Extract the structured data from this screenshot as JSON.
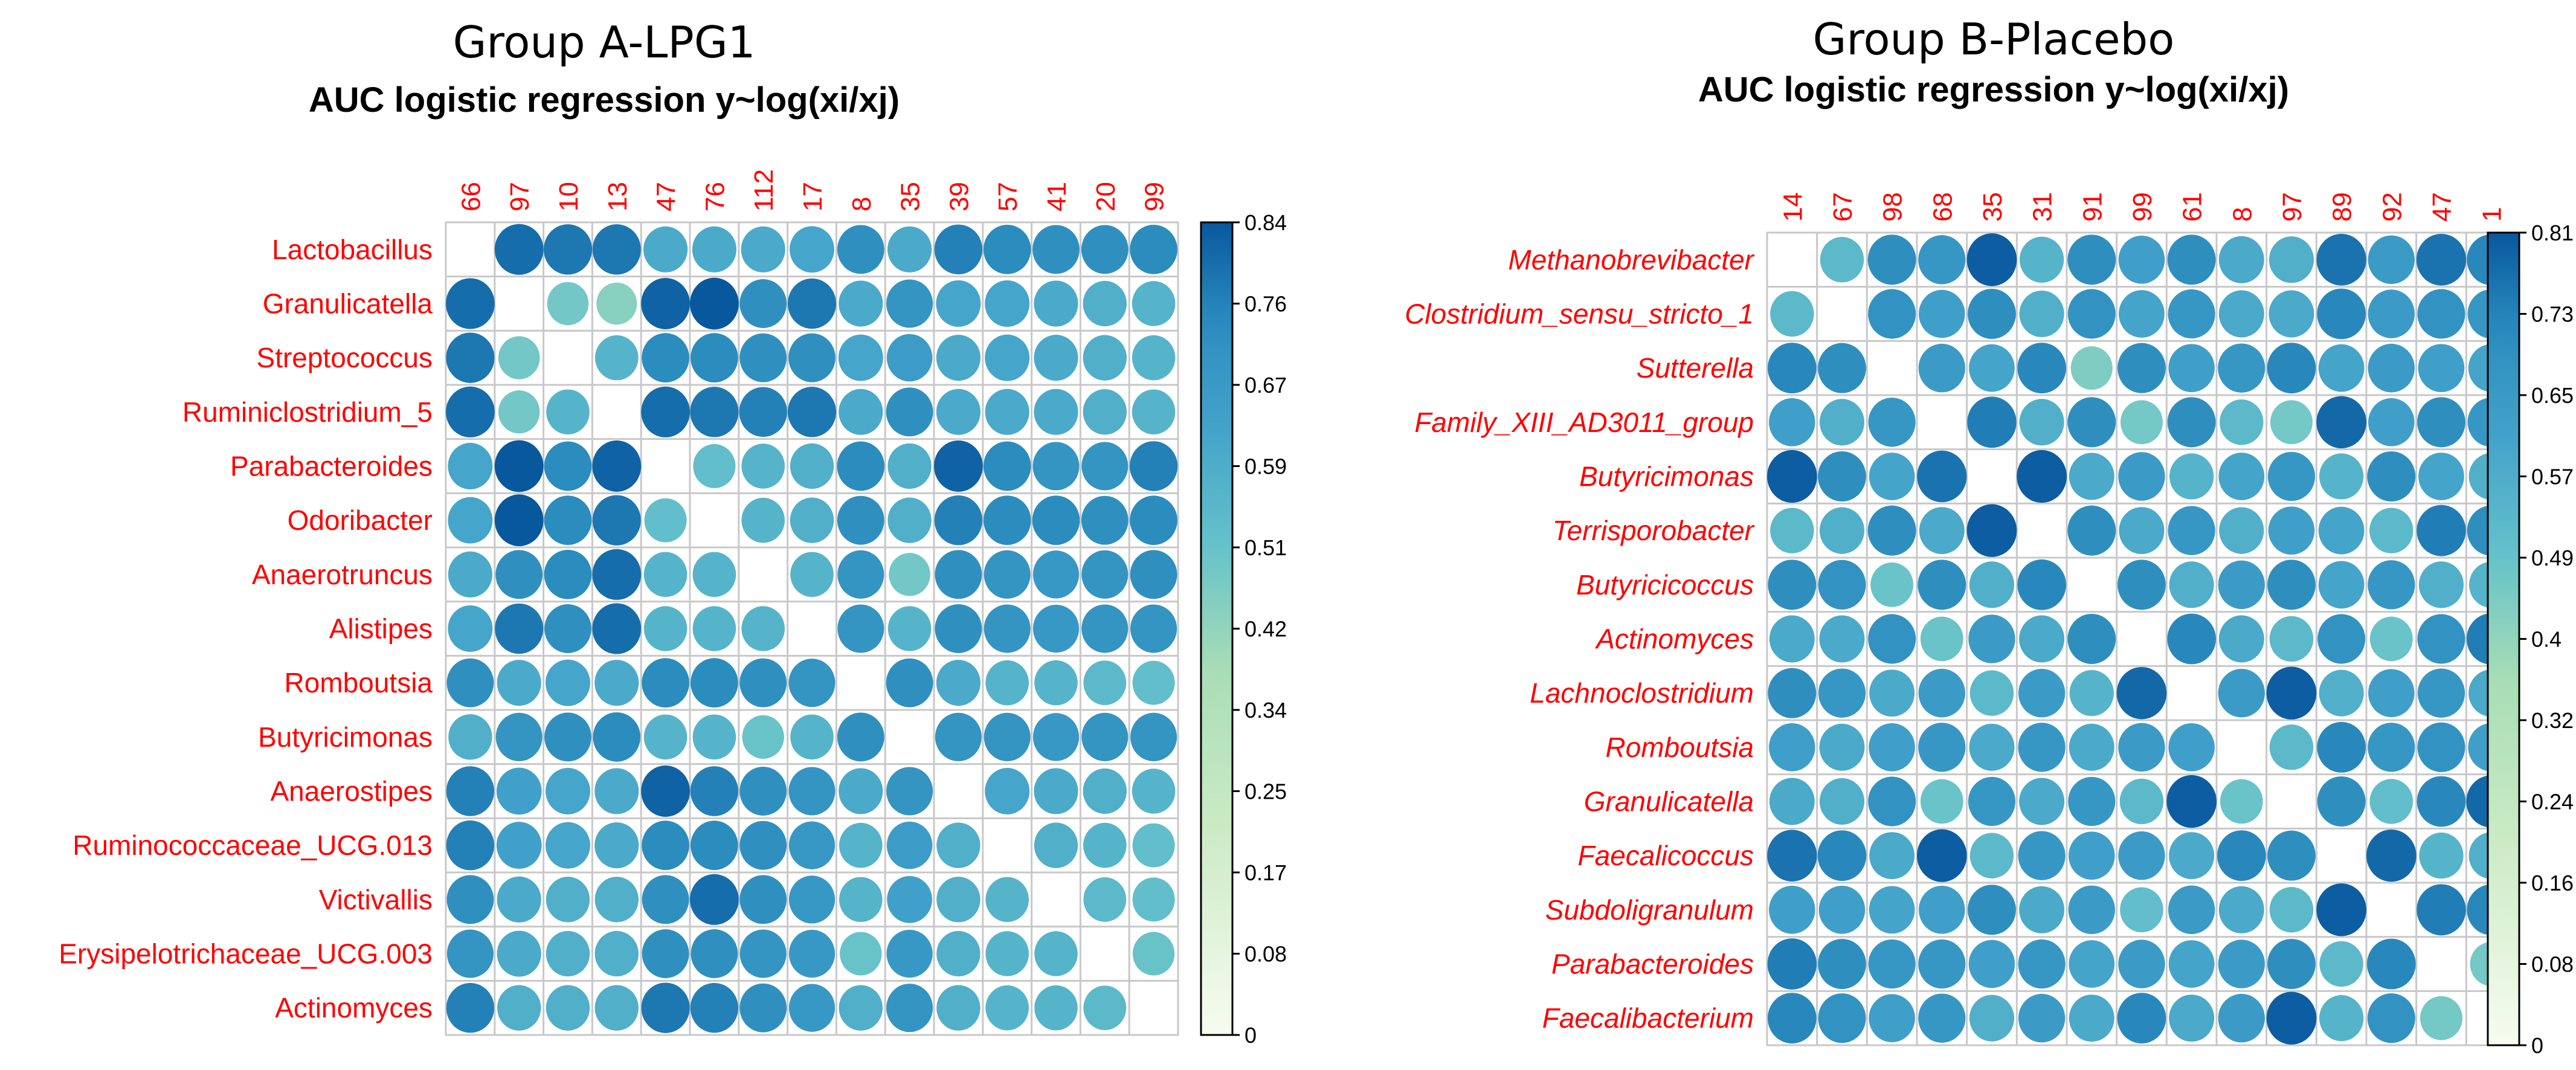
{
  "chart_data": [
    {
      "type": "heatmap",
      "group_title": "Group A-LPG1",
      "title": "AUC logistic regression y~log(xi/xj)",
      "rows": [
        "Lactobacillus",
        "Granulicatella",
        "Streptococcus",
        "Ruminiclostridium_5",
        "Parabacteroides",
        "Odoribacter",
        "Anaerotruncus",
        "Alistipes",
        "Romboutsia",
        "Butyricimonas",
        "Anaerostipes",
        "Ruminococcaceae_UCG.013",
        "Victivallis",
        "Erysipelotrichaceae_UCG.003",
        "Actinomyces"
      ],
      "columns": [
        "66",
        "97",
        "10",
        "13",
        "47",
        "76",
        "112",
        "17",
        "8",
        "35",
        "39",
        "57",
        "41",
        "20",
        "99"
      ],
      "colorbar": {
        "min": 0,
        "max": 0.84,
        "ticks": [
          "0.84",
          "0.76",
          "0.67",
          "0.59",
          "0.51",
          "0.42",
          "0.34",
          "0.25",
          "0.17",
          "0.08",
          "0"
        ]
      },
      "values": [
        [
          null,
          0.8,
          0.78,
          0.78,
          0.6,
          0.6,
          0.6,
          0.62,
          0.72,
          0.6,
          0.76,
          0.74,
          0.72,
          0.72,
          0.74
        ],
        [
          0.8,
          null,
          0.48,
          0.44,
          0.82,
          0.84,
          0.72,
          0.78,
          0.6,
          0.7,
          0.62,
          0.62,
          0.6,
          0.58,
          0.56
        ],
        [
          0.78,
          0.48,
          null,
          0.56,
          0.74,
          0.74,
          0.72,
          0.72,
          0.62,
          0.66,
          0.6,
          0.62,
          0.6,
          0.58,
          0.56
        ],
        [
          0.8,
          0.48,
          0.56,
          null,
          0.8,
          0.78,
          0.76,
          0.78,
          0.6,
          0.72,
          0.6,
          0.6,
          0.6,
          0.58,
          0.56
        ],
        [
          0.62,
          0.84,
          0.74,
          0.82,
          null,
          0.52,
          0.56,
          0.58,
          0.74,
          0.58,
          0.82,
          0.74,
          0.7,
          0.7,
          0.76
        ],
        [
          0.62,
          0.84,
          0.74,
          0.78,
          0.52,
          null,
          0.56,
          0.58,
          0.72,
          0.58,
          0.76,
          0.74,
          0.74,
          0.72,
          0.74
        ],
        [
          0.6,
          0.72,
          0.74,
          0.8,
          0.56,
          0.56,
          null,
          0.56,
          0.7,
          0.48,
          0.72,
          0.7,
          0.68,
          0.7,
          0.72
        ],
        [
          0.62,
          0.78,
          0.72,
          0.8,
          0.56,
          0.56,
          0.56,
          null,
          0.7,
          0.56,
          0.72,
          0.7,
          0.68,
          0.7,
          0.7
        ],
        [
          0.72,
          0.6,
          0.62,
          0.6,
          0.74,
          0.74,
          0.72,
          0.7,
          null,
          0.72,
          0.6,
          0.56,
          0.56,
          0.54,
          0.52
        ],
        [
          0.58,
          0.7,
          0.72,
          0.74,
          0.56,
          0.56,
          0.5,
          0.56,
          0.72,
          null,
          0.7,
          0.7,
          0.68,
          0.7,
          0.7
        ],
        [
          0.76,
          0.64,
          0.62,
          0.6,
          0.82,
          0.76,
          0.72,
          0.7,
          0.6,
          0.7,
          null,
          0.62,
          0.6,
          0.58,
          0.56
        ],
        [
          0.76,
          0.64,
          0.62,
          0.6,
          0.74,
          0.74,
          0.72,
          0.68,
          0.56,
          0.66,
          0.58,
          null,
          0.58,
          0.56,
          0.52
        ],
        [
          0.72,
          0.6,
          0.58,
          0.58,
          0.72,
          0.8,
          0.72,
          0.68,
          0.56,
          0.64,
          0.58,
          0.56,
          null,
          0.54,
          0.52
        ],
        [
          0.7,
          0.6,
          0.58,
          0.58,
          0.72,
          0.72,
          0.7,
          0.68,
          0.5,
          0.68,
          0.58,
          0.56,
          0.56,
          null,
          0.5
        ],
        [
          0.76,
          0.58,
          0.58,
          0.58,
          0.78,
          0.76,
          0.72,
          0.68,
          0.58,
          0.7,
          0.58,
          0.56,
          0.56,
          0.54,
          null
        ]
      ]
    },
    {
      "type": "heatmap",
      "group_title": "Group B-Placebo",
      "title": "AUC logistic regression y~log(xi/xj)",
      "rows": [
        "Methanobrevibacter",
        "Clostridium_sensu_stricto_1",
        "Sutterella",
        "Family_XIII_AD3011_group",
        "Butyricimonas",
        "Terrisporobacter",
        "Butyricicoccus",
        "Actinomyces",
        "Lachnoclostridium",
        "Romboutsia",
        "Granulicatella",
        "Faecalicoccus",
        "Subdoligranulum",
        "Parabacteroides",
        "Faecalibacterium"
      ],
      "columns": [
        "14",
        "67",
        "98",
        "68",
        "35",
        "31",
        "91",
        "99",
        "61",
        "8",
        "97",
        "89",
        "92",
        "47",
        "1"
      ],
      "colorbar": {
        "min": 0,
        "max": 0.81,
        "ticks": [
          "0.81",
          "0.73",
          "0.65",
          "0.57",
          "0.49",
          "0.4",
          "0.32",
          "0.24",
          "0.16",
          "0.08",
          "0"
        ]
      },
      "values": [
        [
          null,
          0.52,
          0.7,
          0.66,
          0.8,
          0.54,
          0.7,
          0.62,
          0.7,
          0.58,
          0.56,
          0.76,
          0.64,
          0.76,
          0.72
        ],
        [
          0.52,
          null,
          0.68,
          0.62,
          0.7,
          0.56,
          0.68,
          0.6,
          0.66,
          0.58,
          0.58,
          0.72,
          0.64,
          0.68,
          0.66
        ],
        [
          0.72,
          0.7,
          null,
          0.64,
          0.6,
          0.72,
          0.44,
          0.7,
          0.62,
          0.66,
          0.72,
          0.6,
          0.64,
          0.62,
          0.6
        ],
        [
          0.62,
          0.56,
          0.66,
          null,
          0.74,
          0.56,
          0.7,
          0.46,
          0.7,
          0.52,
          0.46,
          0.78,
          0.62,
          0.7,
          0.66
        ],
        [
          0.8,
          0.7,
          0.6,
          0.76,
          null,
          0.8,
          0.58,
          0.64,
          0.54,
          0.6,
          0.66,
          0.54,
          0.7,
          0.6,
          0.56
        ],
        [
          0.52,
          0.56,
          0.7,
          0.58,
          0.8,
          null,
          0.7,
          0.58,
          0.66,
          0.56,
          0.62,
          0.6,
          0.52,
          0.74,
          0.7
        ],
        [
          0.7,
          0.68,
          0.48,
          0.7,
          0.56,
          0.72,
          null,
          0.7,
          0.56,
          0.64,
          0.7,
          0.6,
          0.66,
          0.56,
          0.54
        ],
        [
          0.58,
          0.58,
          0.68,
          0.48,
          0.64,
          0.58,
          0.7,
          null,
          0.72,
          0.58,
          0.52,
          0.68,
          0.48,
          0.68,
          0.74
        ],
        [
          0.7,
          0.66,
          0.58,
          0.64,
          0.52,
          0.64,
          0.54,
          0.78,
          null,
          0.64,
          0.8,
          0.56,
          0.62,
          0.66,
          0.58
        ],
        [
          0.62,
          0.58,
          0.62,
          0.66,
          0.58,
          0.66,
          0.58,
          0.64,
          0.62,
          null,
          0.52,
          0.72,
          0.66,
          0.68,
          0.62
        ],
        [
          0.58,
          0.56,
          0.68,
          0.48,
          0.66,
          0.58,
          0.66,
          0.52,
          0.8,
          0.48,
          null,
          0.7,
          0.5,
          0.72,
          0.78
        ],
        [
          0.76,
          0.72,
          0.58,
          0.8,
          0.52,
          0.66,
          0.62,
          0.64,
          0.58,
          0.72,
          0.7,
          null,
          0.78,
          0.54,
          0.56
        ],
        [
          0.62,
          0.62,
          0.6,
          0.62,
          0.7,
          0.58,
          0.64,
          0.5,
          0.64,
          0.58,
          0.52,
          0.8,
          null,
          0.74,
          0.72
        ],
        [
          0.74,
          0.7,
          0.66,
          0.66,
          0.62,
          0.66,
          0.6,
          0.64,
          0.6,
          0.64,
          0.7,
          0.52,
          0.72,
          null,
          0.46
        ],
        [
          0.72,
          0.68,
          0.62,
          0.66,
          0.56,
          0.64,
          0.58,
          0.72,
          0.58,
          0.64,
          0.8,
          0.54,
          0.68,
          0.46,
          null
        ]
      ]
    }
  ]
}
